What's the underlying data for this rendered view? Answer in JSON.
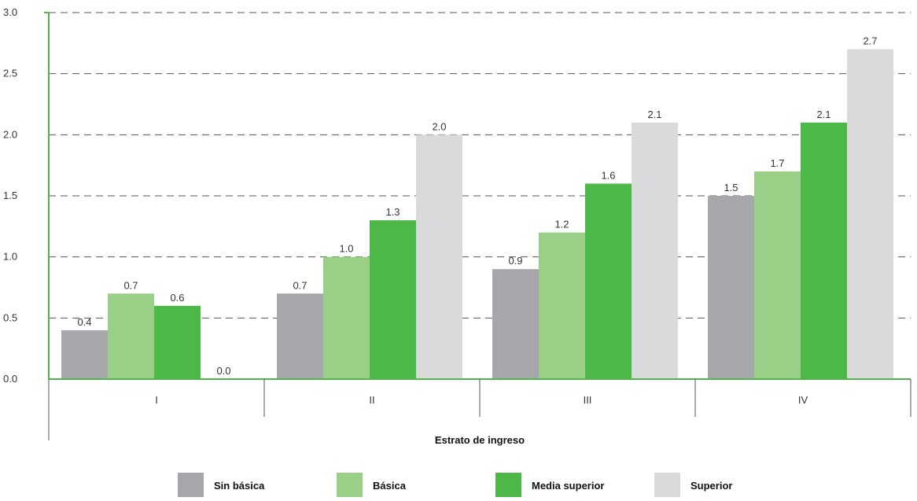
{
  "chart_data": {
    "type": "bar",
    "categories": [
      "I",
      "II",
      "III",
      "IV"
    ],
    "series": [
      {
        "name": "Sin básica",
        "color": "#a7a7ab",
        "values": [
          0.4,
          0.7,
          0.9,
          1.5
        ],
        "labels": [
          "0.4",
          "0.7",
          "0.9",
          "1.5"
        ]
      },
      {
        "name": "Básica",
        "color": "#9acf88",
        "values": [
          0.7,
          1.0,
          1.2,
          1.7
        ],
        "labels": [
          "0.7",
          "1.0",
          "1.2",
          "1.7"
        ]
      },
      {
        "name": "Media superior",
        "color": "#4db848",
        "values": [
          0.6,
          1.3,
          1.6,
          2.1
        ],
        "labels": [
          "0.6",
          "1.3",
          "1.6",
          "2.1"
        ]
      },
      {
        "name": "Superior",
        "color": "#dadadc",
        "values": [
          0.0,
          2.0,
          2.1,
          2.7
        ],
        "labels": [
          "0.0",
          "2.0",
          "2.1",
          "2.7"
        ]
      }
    ],
    "title": "",
    "xlabel": "Estrato de ingreso",
    "ylabel": "",
    "ylim": [
      0,
      3.0
    ],
    "yticks": [
      "0.0",
      "0.5",
      "1.0",
      "1.5",
      "2.0",
      "2.5",
      "3.0"
    ],
    "grid": true,
    "legend_position": "bottom",
    "axis_color": "#4db848"
  }
}
